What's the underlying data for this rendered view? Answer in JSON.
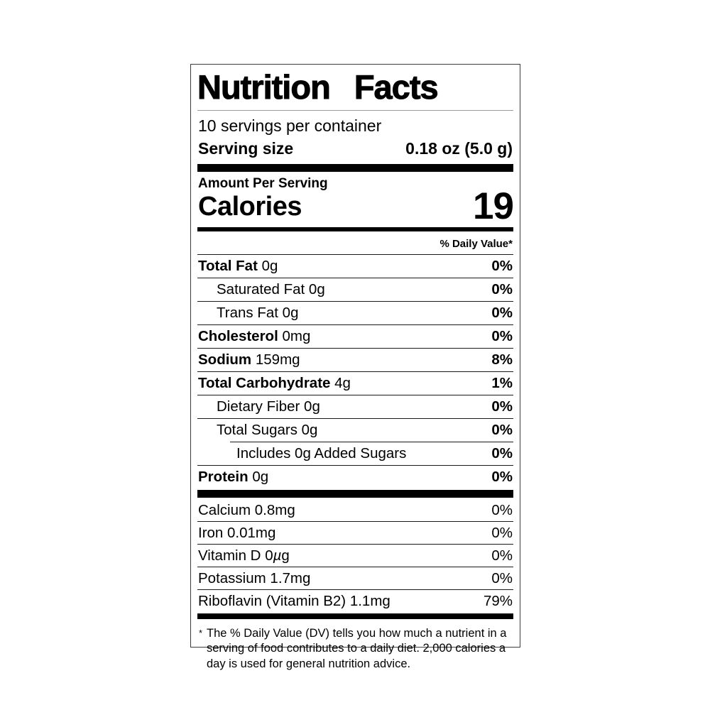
{
  "label": {
    "title": "Nutrition Facts",
    "servings_per_container": "10 servings per container",
    "serving_size_label": "Serving size",
    "serving_size_value": "0.18 oz (5.0 g)",
    "amount_per_serving": "Amount Per Serving",
    "calories_label": "Calories",
    "calories_value": "19",
    "daily_value_header": "% Daily Value*",
    "nutrient_rows": [
      {
        "name": "Total Fat",
        "amount": "0g",
        "dv": "0%",
        "bold": true,
        "indent": 0
      },
      {
        "name": "Saturated Fat",
        "amount": "0g",
        "dv": "0%",
        "bold": false,
        "indent": 1
      },
      {
        "name": "Trans Fat",
        "amount": "0g",
        "dv": "0%",
        "bold": false,
        "indent": 1
      },
      {
        "name": "Cholesterol",
        "amount": "0mg",
        "dv": "0%",
        "bold": true,
        "indent": 0
      },
      {
        "name": "Sodium",
        "amount": "159mg",
        "dv": "8%",
        "bold": true,
        "indent": 0
      },
      {
        "name": "Total Carbohydrate",
        "amount": "4g",
        "dv": "1%",
        "bold": true,
        "indent": 0
      },
      {
        "name": "Dietary Fiber",
        "amount": "0g",
        "dv": "0%",
        "bold": false,
        "indent": 1
      },
      {
        "name": "Total Sugars",
        "amount": "0g",
        "dv": "0%",
        "bold": false,
        "indent": 1
      },
      {
        "name": "Includes 0g Added Sugars",
        "amount": "",
        "dv": "0%",
        "bold": false,
        "indent": 2
      },
      {
        "name": "Protein",
        "amount": "0g",
        "dv": "0%",
        "bold": true,
        "indent": 0
      }
    ],
    "micronutrient_rows": [
      {
        "name": "Calcium",
        "amount": "0.8mg",
        "dv": "0%"
      },
      {
        "name": "Iron",
        "amount": "0.01mg",
        "dv": "0%"
      },
      {
        "name": "Vitamin D",
        "amount": "0µg",
        "dv": "0%"
      },
      {
        "name": "Potassium",
        "amount": "1.7mg",
        "dv": "0%"
      },
      {
        "name": "Riboflavin (Vitamin B2)",
        "amount": "1.1mg",
        "dv": "79%"
      }
    ],
    "footnote_marker": "*",
    "footnote_text": "The % Daily Value (DV) tells you how much a nutrient in a serving of food contributes to a daily diet. 2,000 calories a day is used for general nutrition advice.",
    "colors": {
      "text": "#000000",
      "background": "#ffffff",
      "bar": "#000000"
    }
  }
}
